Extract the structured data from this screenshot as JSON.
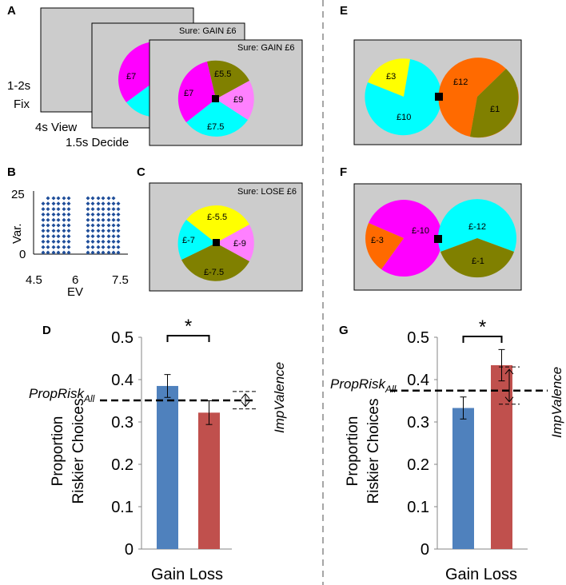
{
  "panel_labels": {
    "A": "A",
    "B": "B",
    "C": "C",
    "D": "D",
    "E": "E",
    "F": "F",
    "G": "G"
  },
  "panel_a": {
    "timing": {
      "fix_1": "1-2s",
      "fix_2": "Fix",
      "view": "4s View",
      "decide": "1.5s Decide"
    },
    "screen2": {
      "sure_text": "Sure: GAIN £6",
      "slice_label": "£7"
    },
    "screen3": {
      "sure_text": "Sure: GAIN £6",
      "slices": [
        "£5.5",
        "£9",
        "£7.5",
        "£7"
      ]
    }
  },
  "panel_b": {
    "ylabel": "Var.",
    "xlabel": "EV",
    "yticks": [
      "25",
      "0"
    ],
    "xticks": [
      "4.5",
      "6",
      "7.5"
    ]
  },
  "panel_c": {
    "sure_text": "Sure: LOSE £6",
    "slices": [
      "£-5.5",
      "£-9",
      "£-7.5",
      "£-7"
    ]
  },
  "panel_e": {
    "left": [
      "£3",
      "£10"
    ],
    "right": [
      "£12",
      "£1"
    ]
  },
  "panel_f": {
    "left": [
      "£-10",
      "£-3"
    ],
    "right": [
      "£-12",
      "£-1"
    ]
  },
  "colors": {
    "magenta": "#ff00ff",
    "cyan": "#00ffff",
    "olive": "#808000",
    "pink": "#ff80ff",
    "yellow": "#ffff00",
    "orange": "#ff6a00",
    "gray": "#cccccc",
    "gain": "#4f81bd",
    "loss": "#c0504d"
  },
  "chart_data": [
    {
      "panel": "D",
      "type": "bar",
      "ylabel_line1": "Proportion",
      "ylabel_line2": "Riskier Choices",
      "categories": [
        "Gain",
        "Loss"
      ],
      "xlabel": "Gain Loss",
      "values": [
        0.385,
        0.322
      ],
      "errors": [
        0.027,
        0.028
      ],
      "ylim": [
        0,
        0.5
      ],
      "yticks": [
        "0",
        "0.1",
        "0.2",
        "0.3",
        "0.4",
        "0.5"
      ],
      "reference_line": {
        "label": "PropRisk",
        "label_sub": "All",
        "value": 0.351
      },
      "bracket_range": [
        0.331,
        0.372
      ],
      "annotation": "ImpValence",
      "significance": "*"
    },
    {
      "panel": "G",
      "type": "bar",
      "ylabel_line1": "Proportion",
      "ylabel_line2": "Riskier Choices",
      "categories": [
        "Gain",
        "Loss"
      ],
      "xlabel": "Gain Loss",
      "values": [
        0.333,
        0.434
      ],
      "errors": [
        0.026,
        0.037
      ],
      "ylim": [
        0,
        0.5
      ],
      "yticks": [
        "0",
        "0.1",
        "0.2",
        "0.3",
        "0.4",
        "0.5"
      ],
      "reference_line": {
        "label": "PropRisk",
        "label_sub": "All",
        "value": 0.374
      },
      "bracket_range": [
        0.342,
        0.43
      ],
      "annotation": "ImpValence",
      "significance": "*"
    }
  ]
}
